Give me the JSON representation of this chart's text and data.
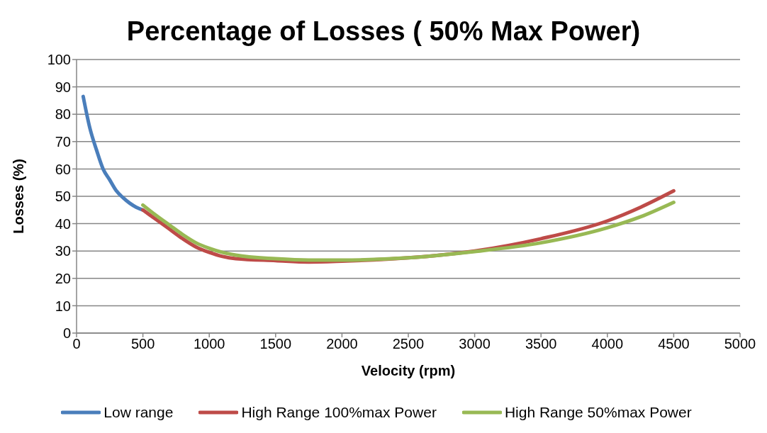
{
  "chart_data": {
    "type": "line",
    "title": "Percentage of Losses ( 50% Max Power)",
    "xlabel": "Velocity (rpm)",
    "ylabel": "Losses (%)",
    "xlim": [
      0,
      5000
    ],
    "xticks": [
      0,
      500,
      1000,
      1500,
      2000,
      2500,
      3000,
      3500,
      4000,
      4500,
      5000
    ],
    "ylim": [
      0,
      100
    ],
    "yticks": [
      0,
      10,
      20,
      30,
      40,
      50,
      60,
      70,
      80,
      90,
      100
    ],
    "grid": "y",
    "legend": "bottom",
    "marker": "none",
    "line_style": "solid",
    "series": [
      {
        "name": "Low range",
        "color": "#4a7ebb",
        "x": [
          50,
          100,
          150,
          200,
          250,
          300,
          350,
          400,
          450,
          500
        ],
        "values": [
          86.5,
          75,
          67,
          60,
          56,
          52,
          49.5,
          47.5,
          46,
          45
        ]
      },
      {
        "name": "High Range 100%max Power",
        "color": "#be4b48",
        "x": [
          500,
          600,
          700,
          800,
          900,
          1000,
          1100,
          1200,
          1500,
          1750,
          2000,
          2500,
          3000,
          3500,
          4000,
          4250,
          4500
        ],
        "values": [
          45,
          41.5,
          38,
          34.5,
          31.5,
          29.5,
          28,
          27.2,
          26.5,
          26,
          26.3,
          27.5,
          30,
          34.5,
          41,
          46,
          52
        ]
      },
      {
        "name": "High Range 50%max Power",
        "color": "#98b954",
        "x": [
          500,
          600,
          700,
          800,
          900,
          1000,
          1100,
          1200,
          1500,
          1750,
          2000,
          2500,
          3000,
          3500,
          4000,
          4250,
          4500
        ],
        "values": [
          46.8,
          43,
          39.5,
          36,
          33,
          31,
          29.5,
          28.5,
          27.2,
          26.7,
          26.7,
          27.5,
          29.8,
          33,
          38.5,
          42.5,
          47.8
        ]
      }
    ]
  }
}
